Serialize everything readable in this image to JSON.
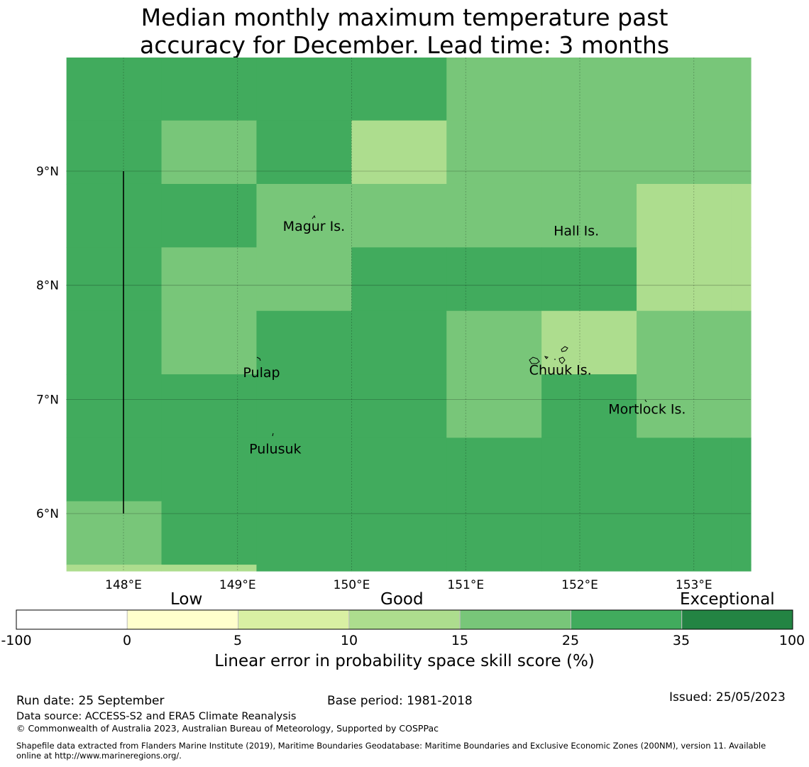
{
  "title_line1": "Median monthly maximum temperature past",
  "title_line2": "accuracy for December. Lead time: 3 months",
  "chart_data": {
    "type": "heatmap",
    "title": "Median monthly maximum temperature past accuracy for December. Lead time: 3 months",
    "x_ticks": [
      "148°E",
      "149°E",
      "150°E",
      "151°E",
      "152°E",
      "153°E"
    ],
    "y_ticks": [
      "9°N",
      "8°N",
      "7°N",
      "6°N"
    ],
    "x_range": [
      147.5,
      153.5
    ],
    "y_range": [
      5.5,
      10.0
    ],
    "grid_origin": {
      "lon": 147.5,
      "lat": 10.0
    },
    "cell_size_deg": {
      "lon": 0.833,
      "lat": 0.556
    },
    "cell_rows": [
      [
        5,
        5,
        5,
        5,
        4,
        4,
        4,
        4
      ],
      [
        5,
        4,
        5,
        3,
        4,
        4,
        4,
        4
      ],
      [
        5,
        5,
        4,
        4,
        4,
        4,
        3,
        3
      ],
      [
        5,
        4,
        4,
        5,
        5,
        5,
        3,
        3
      ],
      [
        5,
        4,
        5,
        5,
        4,
        3,
        4,
        4
      ],
      [
        5,
        5,
        5,
        5,
        4,
        5,
        4,
        4
      ],
      [
        5,
        5,
        5,
        5,
        5,
        5,
        5,
        5
      ],
      [
        4,
        5,
        5,
        5,
        5,
        5,
        5,
        5
      ],
      [
        3,
        3,
        5,
        5,
        5,
        5,
        5,
        5
      ]
    ],
    "colorbar": {
      "label": "Linear error in probability space skill score (%)",
      "ticks": [
        "-100",
        "0",
        "5",
        "10",
        "15",
        "25",
        "35",
        "100"
      ],
      "colors": [
        "#ffffff",
        "#ffffcc",
        "#d9f0a3",
        "#addd8e",
        "#78c679",
        "#41ab5d",
        "#238443"
      ],
      "categories": [
        "Low",
        "Good",
        "Exceptional"
      ]
    },
    "places": [
      {
        "name": "Magur Is.",
        "lon": 149.67,
        "lat": 8.52
      },
      {
        "name": "Hall Is.",
        "lon": 151.97,
        "lat": 8.48
      },
      {
        "name": "Pulap",
        "lon": 149.21,
        "lat": 7.24
      },
      {
        "name": "Chuuk Is.",
        "lon": 151.83,
        "lat": 7.26
      },
      {
        "name": "Mortlock Is.",
        "lon": 152.59,
        "lat": 6.92
      },
      {
        "name": "Pulusuk",
        "lon": 149.33,
        "lat": 6.57
      }
    ],
    "boundary_line": {
      "lon": 148.0,
      "lat_from": 6.0,
      "lat_to": 9.0
    }
  },
  "footer": {
    "run_date": "Run date: 25 September",
    "base_period": "Base period: 1981-2018",
    "issued": "Issued: 25/05/2023",
    "data_source": "Data source: ACCESS-S2 and ERA5 Climate Reanalysis",
    "copyright": "© Commonwealth of Australia 2023, Australian Bureau of Meteorology, Supported by COSPPac",
    "shapefile_line1": "Shapefile data extracted from Flanders Marine Institute (2019), Maritime Boundaries Geodatabase: Maritime Boundaries and Exclusive Economic Zones (200NM), version 11. Available",
    "shapefile_line2": "online at http://www.marineregions.org/."
  }
}
